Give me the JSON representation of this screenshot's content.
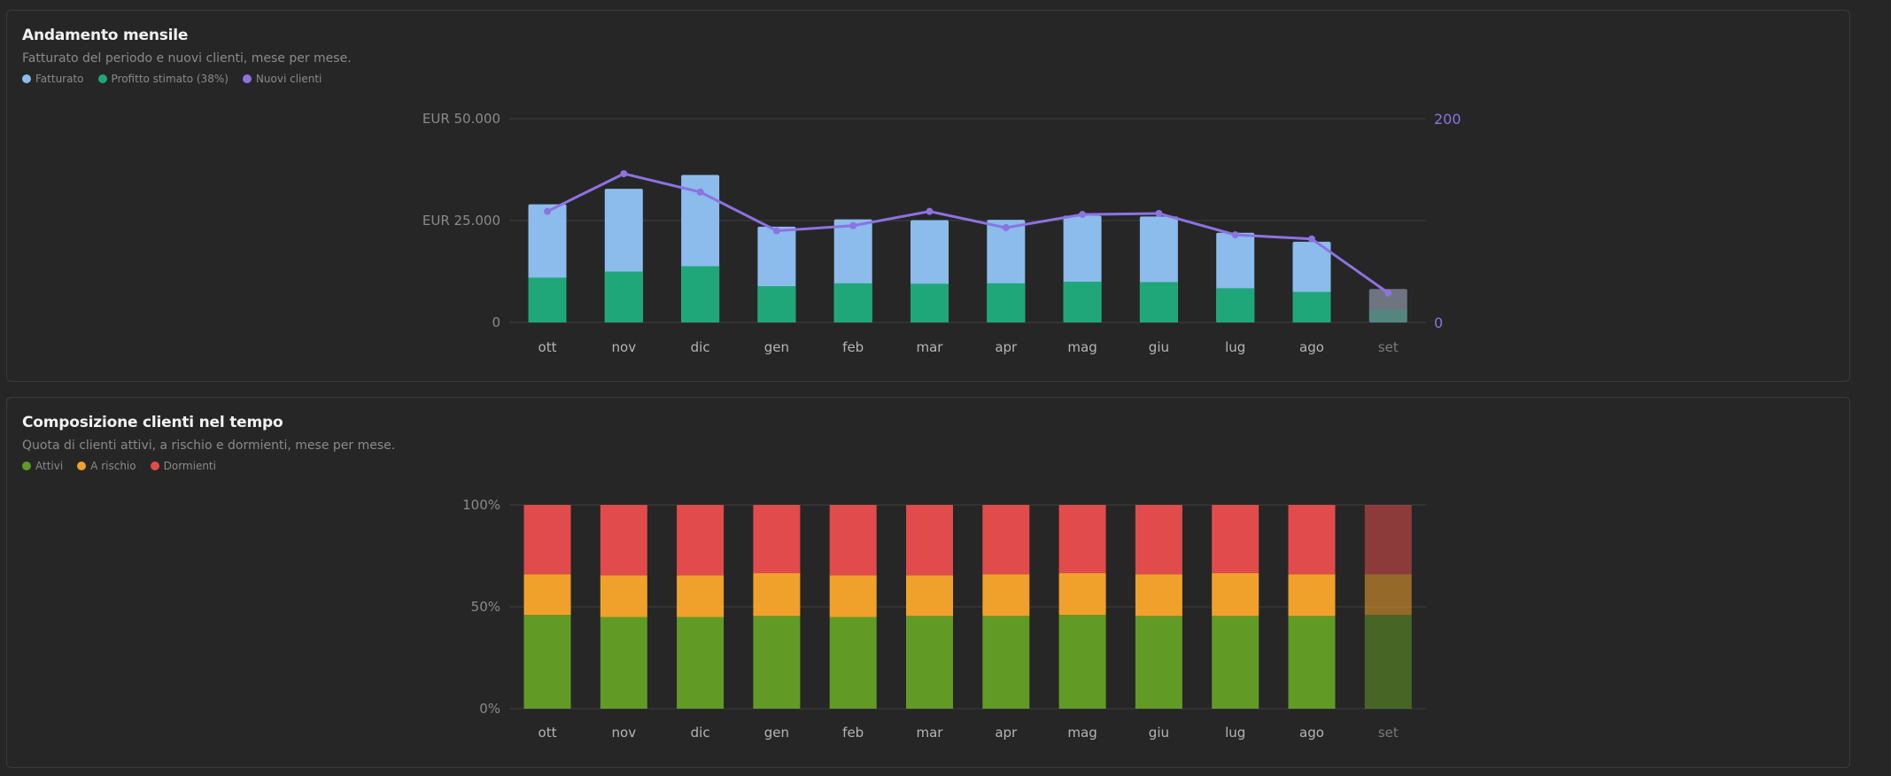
{
  "colors": {
    "fatturato": "#8bbcec",
    "profitto": "#1fa77a",
    "clienti": "#8d72e1",
    "attivi": "#629a26",
    "a_rischio": "#f0a12b",
    "dormienti": "#e24b4b",
    "projected_bar": "#6e7580"
  },
  "panel1": {
    "title": "Andamento mensile",
    "subtitle": "Fatturato del periodo e nuovi clienti, mese per mese.",
    "legend": [
      "Fatturato",
      "Profitto stimato (38%)",
      "Nuovi clienti"
    ]
  },
  "panel2": {
    "title": "Composizione clienti nel tempo",
    "subtitle": "Quota di clienti attivi, a rischio e dormienti, mese per mese.",
    "legend": [
      "Attivi",
      "A rischio",
      "Dormienti"
    ]
  },
  "chart_data": [
    {
      "type": "bar",
      "categories": [
        "ott",
        "nov",
        "dic",
        "gen",
        "feb",
        "mar",
        "apr",
        "mag",
        "giu",
        "lug",
        "ago",
        "set"
      ],
      "series": [
        {
          "name": "Fatturato",
          "values": [
            29000,
            32800,
            36200,
            23500,
            25300,
            25100,
            25200,
            26200,
            26000,
            22000,
            19800,
            8200
          ]
        },
        {
          "name": "Profitto stimato (38%)",
          "values": [
            11000,
            12500,
            13800,
            8900,
            9600,
            9500,
            9600,
            10000,
            9900,
            8400,
            7500,
            3100
          ]
        },
        {
          "name": "Nuovi clienti",
          "axis": "right",
          "values": [
            109,
            146,
            128,
            90,
            95,
            109,
            93,
            106,
            107,
            86,
            82,
            29
          ]
        }
      ],
      "y_ticks": [
        "EUR 50.000",
        "EUR 25.000",
        "0"
      ],
      "ylim": [
        0,
        50000
      ],
      "y2_ticks": [
        "200",
        "0"
      ],
      "y2lim": [
        0,
        200
      ],
      "grid": true
    },
    {
      "type": "bar",
      "stacked": true,
      "categories": [
        "ott",
        "nov",
        "dic",
        "gen",
        "feb",
        "mar",
        "apr",
        "mag",
        "giu",
        "lug",
        "ago",
        "set"
      ],
      "series": [
        {
          "name": "Attivi",
          "values": [
            46,
            45,
            45,
            45.5,
            45,
            45.5,
            45.5,
            46,
            45.5,
            45.5,
            45.5,
            46
          ]
        },
        {
          "name": "A rischio",
          "values": [
            20,
            20.5,
            20.5,
            21,
            20.5,
            20,
            20.5,
            20.5,
            20.5,
            21,
            20.5,
            20
          ]
        },
        {
          "name": "Dormienti",
          "values": [
            34,
            34.5,
            34.5,
            33.5,
            34.5,
            34.5,
            34,
            33.5,
            34,
            33.5,
            34,
            34
          ]
        }
      ],
      "y_ticks": [
        "100%",
        "50%",
        "0%"
      ],
      "ylim": [
        0,
        100
      ],
      "grid": true
    }
  ]
}
